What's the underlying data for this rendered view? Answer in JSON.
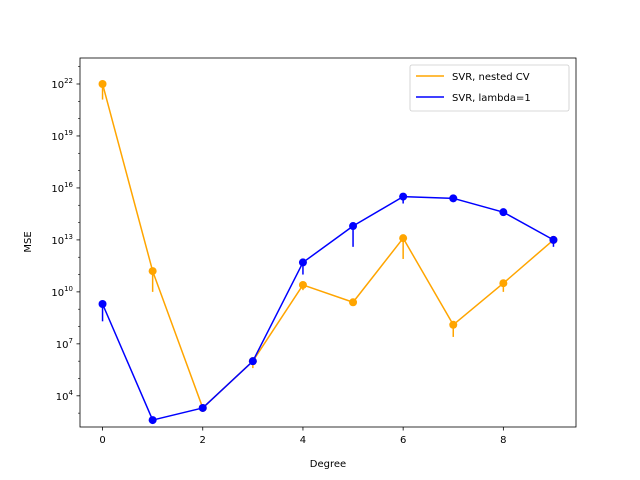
{
  "chart_data": {
    "type": "line",
    "xlabel": "Degree",
    "ylabel": "MSE",
    "yscale": "log",
    "xlim": [
      -0.45,
      9.45
    ],
    "ylim_log10": [
      2.2,
      23.5
    ],
    "x_ticks": [
      0,
      2,
      4,
      6,
      8
    ],
    "x_tick_labels": [
      "0",
      "2",
      "4",
      "6",
      "8"
    ],
    "y_tick_exponents": [
      4,
      7,
      10,
      13,
      16,
      19,
      22
    ],
    "legend": {
      "placement": "top-right"
    },
    "series": [
      {
        "name": "SVR, nested CV",
        "color": "#ffa500",
        "x": [
          0,
          1,
          2,
          3,
          4,
          5,
          6,
          7,
          8,
          9
        ],
        "log10_y": [
          22.0,
          11.2,
          3.3,
          6.0,
          10.4,
          9.4,
          13.1,
          8.1,
          10.5,
          13.0
        ],
        "log10_err_low": [
          21.1,
          10.0,
          3.3,
          5.6,
          10.1,
          9.3,
          11.9,
          7.4,
          10.0,
          12.8
        ]
      },
      {
        "name": "SVR, lambda=1",
        "color": "#0000ff",
        "x": [
          0,
          1,
          2,
          3,
          4,
          5,
          6,
          7,
          8,
          9
        ],
        "log10_y": [
          9.3,
          2.6,
          3.3,
          6.0,
          11.7,
          13.8,
          15.5,
          15.4,
          14.6,
          13.0
        ],
        "log10_err_low": [
          8.3,
          2.6,
          3.3,
          5.8,
          11.0,
          12.6,
          15.1,
          15.4,
          14.6,
          12.6
        ]
      }
    ]
  }
}
